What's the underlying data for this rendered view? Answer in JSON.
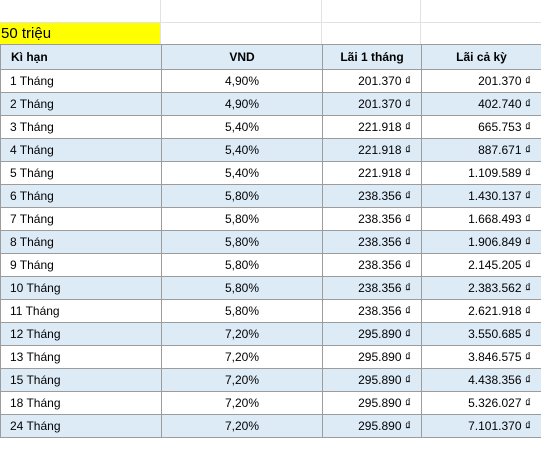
{
  "sheet": {
    "title_cell": "50 triệu",
    "colors": {
      "title_highlight": "#ffff00",
      "header_fill": "#ddebf7",
      "alt_row_fill": "#ddebf7",
      "border": "#9c9c9c"
    },
    "headers": [
      "Kì hạn",
      "VND",
      "Lãi 1 tháng",
      "Lãi cả kỳ"
    ],
    "rows": [
      [
        "1 Tháng",
        "4,90%",
        "201.370 ₫",
        "201.370 ₫"
      ],
      [
        "2 Tháng",
        "4,90%",
        "201.370 ₫",
        "402.740 ₫"
      ],
      [
        "3 Tháng",
        "5,40%",
        "221.918 ₫",
        "665.753 ₫"
      ],
      [
        "4 Tháng",
        "5,40%",
        "221.918 ₫",
        "887.671 ₫"
      ],
      [
        "5 Tháng",
        "5,40%",
        "221.918 ₫",
        "1.109.589 ₫"
      ],
      [
        "6 Tháng",
        "5,80%",
        "238.356 ₫",
        "1.430.137 ₫"
      ],
      [
        "7 Tháng",
        "5,80%",
        "238.356 ₫",
        "1.668.493 ₫"
      ],
      [
        "8 Tháng",
        "5,80%",
        "238.356 ₫",
        "1.906.849 ₫"
      ],
      [
        "9 Tháng",
        "5,80%",
        "238.356 ₫",
        "2.145.205 ₫"
      ],
      [
        "10 Tháng",
        "5,80%",
        "238.356 ₫",
        "2.383.562 ₫"
      ],
      [
        "11 Tháng",
        "5,80%",
        "238.356 ₫",
        "2.621.918 ₫"
      ],
      [
        "12 Tháng",
        "7,20%",
        "295.890 ₫",
        "3.550.685 ₫"
      ],
      [
        "13 Tháng",
        "7,20%",
        "295.890 ₫",
        "3.846.575 ₫"
      ],
      [
        "15 Tháng",
        "7,20%",
        "295.890 ₫",
        "4.438.356 ₫"
      ],
      [
        "18 Tháng",
        "7,20%",
        "295.890 ₫",
        "5.326.027 ₫"
      ],
      [
        "24 Tháng",
        "7,20%",
        "295.890 ₫",
        "7.101.370 ₫"
      ]
    ]
  }
}
